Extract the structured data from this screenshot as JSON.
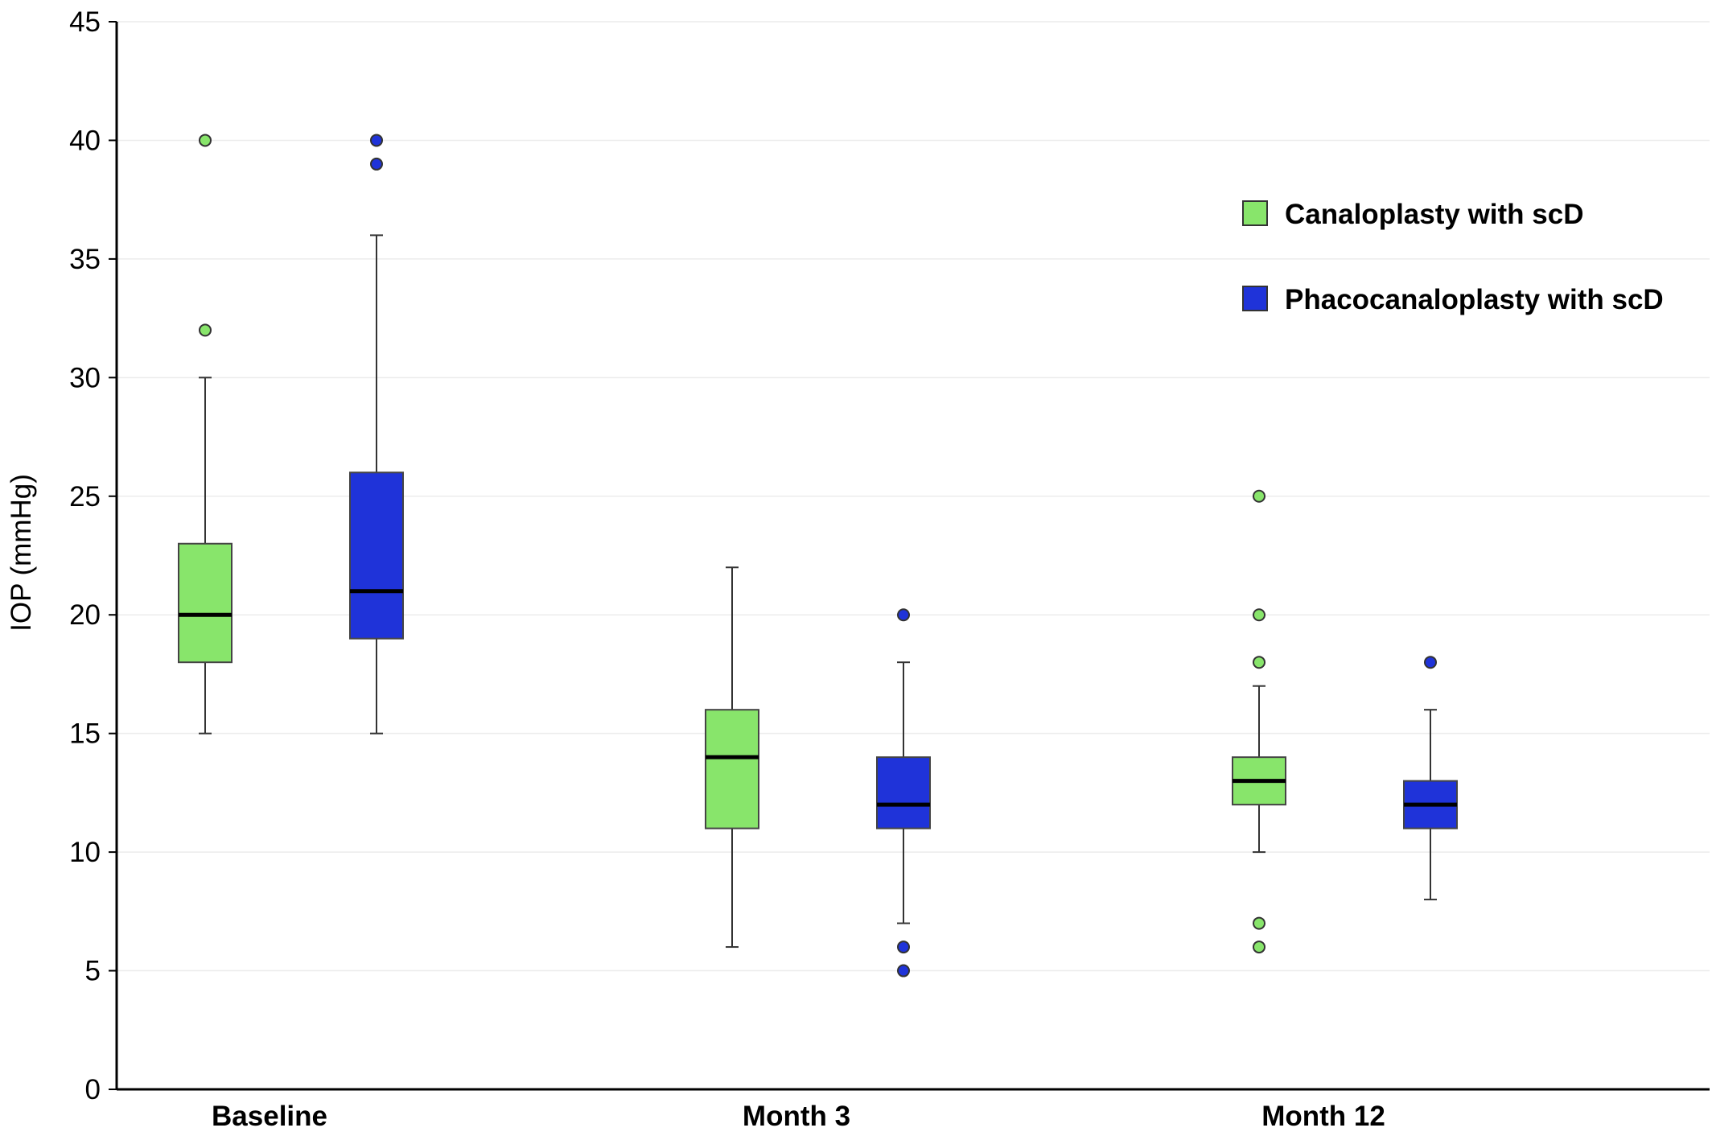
{
  "chart_data": {
    "type": "box",
    "ylabel": "IOP (mmHg)",
    "xlabel": "",
    "ylim": [
      0,
      45
    ],
    "yticks": [
      0,
      5,
      10,
      15,
      20,
      25,
      30,
      35,
      40,
      45
    ],
    "grid": "horizontal",
    "legend_position": "top-right",
    "categories": [
      "Baseline",
      "Month 3",
      "Month 12"
    ],
    "series": [
      {
        "name": "Canaloplasty with scD",
        "color": "#88e56b",
        "boxes": [
          {
            "whisker_low": 15,
            "q1": 18,
            "median": 20,
            "q3": 23,
            "whisker_high": 30,
            "outliers": [
              32,
              40
            ]
          },
          {
            "whisker_low": 6,
            "q1": 11,
            "median": 14,
            "q3": 16,
            "whisker_high": 22,
            "outliers": []
          },
          {
            "whisker_low": 10,
            "q1": 12,
            "median": 13,
            "q3": 14,
            "whisker_high": 17,
            "outliers": [
              6,
              7,
              18,
              20,
              25
            ]
          }
        ]
      },
      {
        "name": "Phacocanaloplasty with scD",
        "color": "#1f33d9",
        "boxes": [
          {
            "whisker_low": 15,
            "q1": 19,
            "median": 21,
            "q3": 26,
            "whisker_high": 36,
            "outliers": [
              39,
              40
            ]
          },
          {
            "whisker_low": 7,
            "q1": 11,
            "median": 12,
            "q3": 14,
            "whisker_high": 18,
            "outliers": [
              5,
              6,
              20
            ]
          },
          {
            "whisker_low": 8,
            "q1": 11,
            "median": 12,
            "q3": 13,
            "whisker_high": 16,
            "outliers": [
              18
            ]
          }
        ]
      }
    ]
  }
}
